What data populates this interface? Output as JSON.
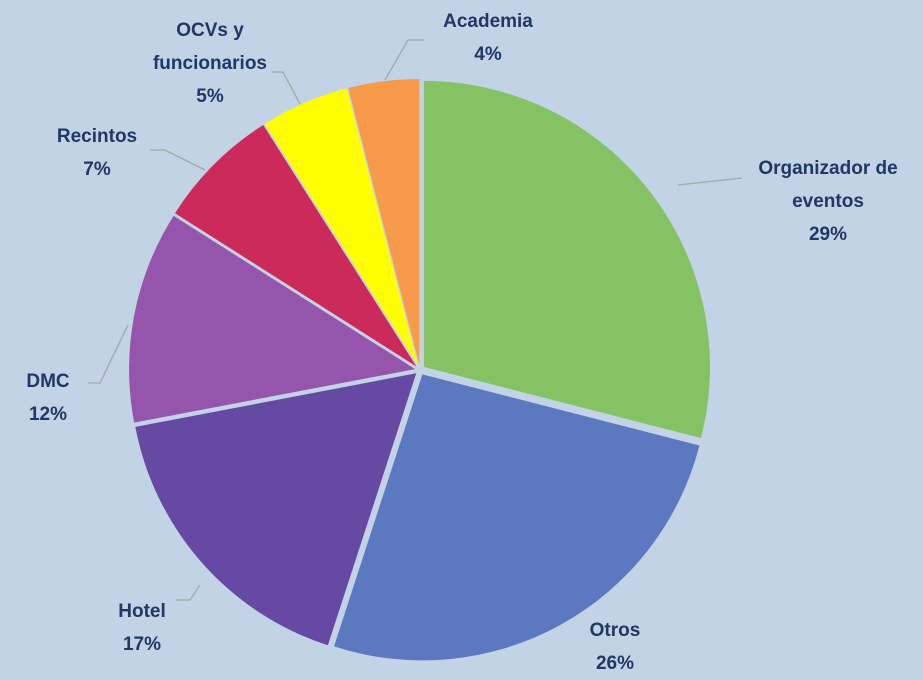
{
  "chart_data": {
    "type": "pie",
    "categories": [
      "Organizador de eventos",
      "Otros",
      "Hotel",
      "DMC",
      "Recintos",
      "OCVs y funcionarios",
      "Academia"
    ],
    "values": [
      29,
      26,
      17,
      12,
      7,
      5,
      4
    ],
    "value_labels": [
      "29%",
      "26%",
      "17%",
      "12%",
      "7%",
      "5%",
      "4%"
    ],
    "colors": [
      "#84c263",
      "#5b78c0",
      "#6549a3",
      "#9655ac",
      "#cc2a5a",
      "#ffff00",
      "#f79a4a"
    ]
  }
}
